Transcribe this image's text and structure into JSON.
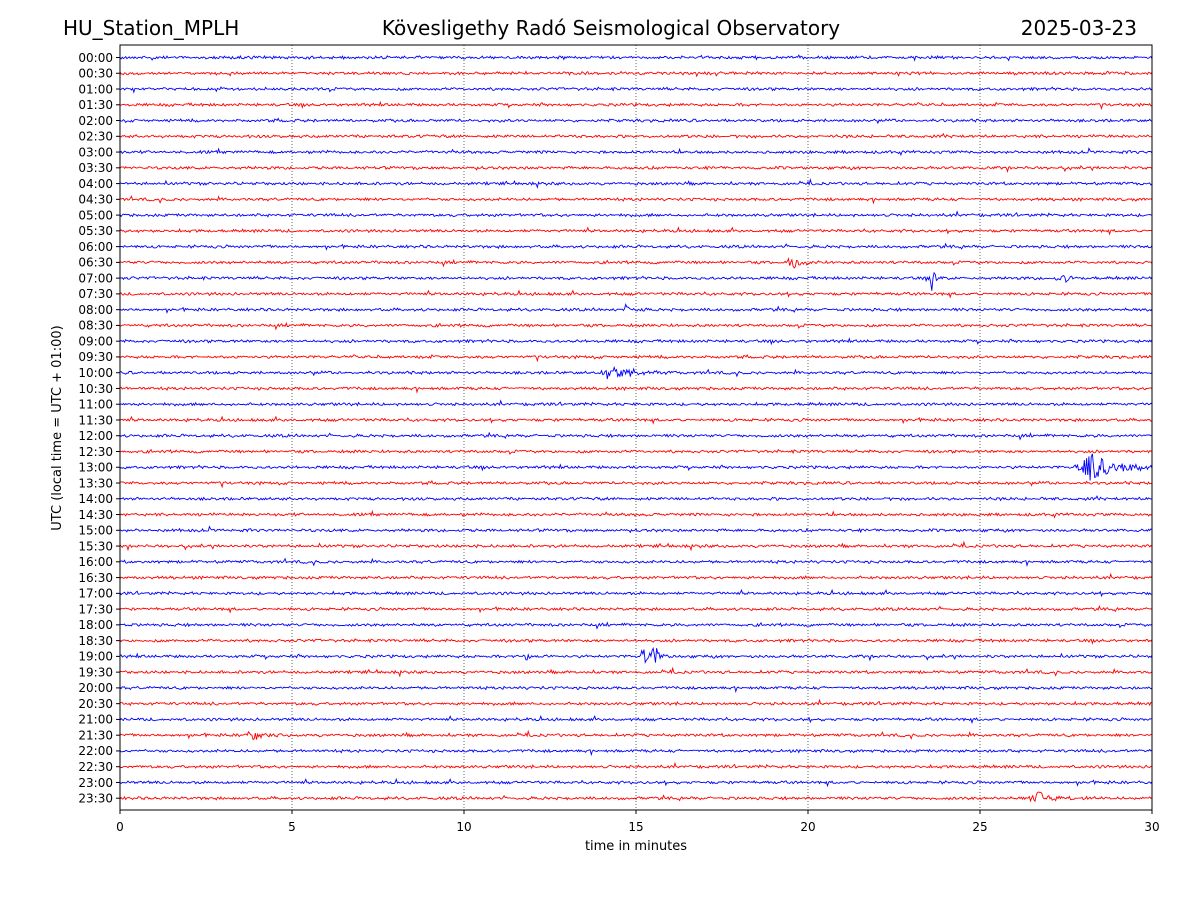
{
  "header": {
    "station": "HU_Station_MPLH",
    "observatory": "Kövesligethy Radó Seismological Observatory",
    "date": "2025-03-23"
  },
  "chart_data": {
    "type": "line",
    "title": "Kövesligethy Radó Seismological Observatory",
    "xlabel": "time in minutes",
    "ylabel": "UTC (local time = UTC + 01:00)",
    "xlim": [
      0,
      30
    ],
    "xticks": [
      "0",
      "5",
      "10",
      "15",
      "20",
      "25",
      "30"
    ],
    "grid": "vertical dotted at x ticks",
    "colors": {
      "even_rows": "#0000ff",
      "odd_rows": "#ff0000"
    },
    "rows": [
      "00:00",
      "00:30",
      "01:00",
      "01:30",
      "02:00",
      "02:30",
      "03:00",
      "03:30",
      "04:00",
      "04:30",
      "05:00",
      "05:30",
      "06:00",
      "06:30",
      "07:00",
      "07:30",
      "08:00",
      "08:30",
      "09:00",
      "09:30",
      "10:00",
      "10:30",
      "11:00",
      "11:30",
      "12:00",
      "12:30",
      "13:00",
      "13:30",
      "14:00",
      "14:30",
      "15:00",
      "15:30",
      "16:00",
      "16:30",
      "17:00",
      "17:30",
      "18:00",
      "18:30",
      "19:00",
      "19:30",
      "20:00",
      "20:30",
      "21:00",
      "21:30",
      "22:00",
      "22:30",
      "23:00",
      "23:30"
    ],
    "events": [
      {
        "row": "06:30",
        "minute": 19.5,
        "amplitude": 0.6,
        "duration": 0.6
      },
      {
        "row": "07:00",
        "minute": 23.6,
        "amplitude": 0.8,
        "duration": 0.3
      },
      {
        "row": "07:00",
        "minute": 27.3,
        "amplitude": 0.7,
        "duration": 0.4
      },
      {
        "row": "08:00",
        "minute": 14.7,
        "amplitude": 0.3,
        "duration": 0.4
      },
      {
        "row": "10:00",
        "minute": 14.2,
        "amplitude": 0.5,
        "duration": 1.2
      },
      {
        "row": "13:00",
        "minute": 28.2,
        "amplitude": 1.0,
        "duration": 1.6
      },
      {
        "row": "19:00",
        "minute": 15.2,
        "amplitude": 0.9,
        "duration": 0.3
      },
      {
        "row": "19:00",
        "minute": 15.5,
        "amplitude": 0.6,
        "duration": 0.5
      },
      {
        "row": "19:00",
        "minute": 11.8,
        "amplitude": 0.3,
        "duration": 0.5
      },
      {
        "row": "21:30",
        "minute": 3.8,
        "amplitude": 0.4,
        "duration": 0.6
      },
      {
        "row": "23:30",
        "minute": 26.6,
        "amplitude": 0.5,
        "duration": 1.2
      }
    ]
  }
}
